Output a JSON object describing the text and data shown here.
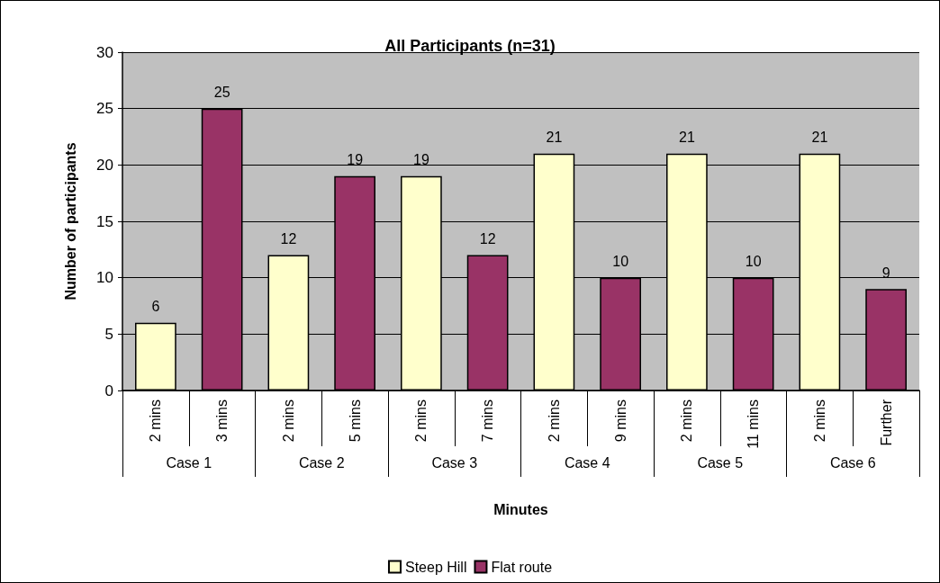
{
  "chart_data": {
    "type": "bar",
    "title": "All Participants (n=31)",
    "xlabel": "Minutes",
    "ylabel": "Number of participants",
    "categories": [
      "2 mins",
      "3 mins",
      "2 mins",
      "5 mins",
      "2 mins",
      "7 mins",
      "2 mins",
      "9 mins",
      "2 mins",
      "11 mins",
      "2 mins",
      "Further"
    ],
    "annotations": [
      "Case 1",
      "Case 2",
      "Case 3",
      "Case 4",
      "Case 5",
      "Case 6"
    ],
    "series": [
      {
        "name": "Steep Hill",
        "color": "#ffffcc",
        "values": [
          6,
          null,
          12,
          null,
          19,
          null,
          21,
          null,
          21,
          null,
          21,
          null
        ]
      },
      {
        "name": "Flat route",
        "color": "#993366",
        "values": [
          null,
          25,
          null,
          19,
          null,
          12,
          null,
          10,
          null,
          10,
          null,
          9
        ]
      }
    ],
    "ylim": [
      0,
      30
    ],
    "yticks": [
      0,
      5,
      10,
      15,
      20,
      25,
      30
    ],
    "grid": "y",
    "legend": "bottom",
    "data_labels": true
  }
}
